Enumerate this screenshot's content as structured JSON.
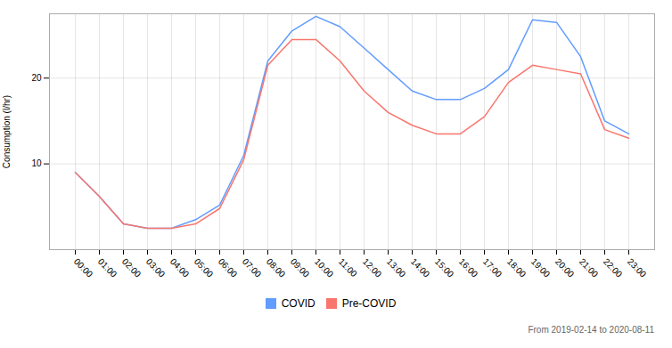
{
  "chart_data": {
    "type": "line",
    "categories": [
      "00:00",
      "01:00",
      "02:00",
      "03:00",
      "04:00",
      "05:00",
      "06:00",
      "07:00",
      "08:00",
      "09:00",
      "10:00",
      "11:00",
      "12:00",
      "13:00",
      "14:00",
      "15:00",
      "16:00",
      "17:00",
      "18:00",
      "19:00",
      "20:00",
      "21:00",
      "22:00",
      "23:00"
    ],
    "series": [
      {
        "name": "COVID",
        "color": "#619CFF",
        "values": [
          9.0,
          6.2,
          3.0,
          2.5,
          2.5,
          3.5,
          5.2,
          11.0,
          22.0,
          25.5,
          27.2,
          26.0,
          23.5,
          21.0,
          18.5,
          17.5,
          17.5,
          18.8,
          21.0,
          26.8,
          26.5,
          22.5,
          15.0,
          13.5
        ]
      },
      {
        "name": "Pre-COVID",
        "color": "#F8766D",
        "values": [
          9.0,
          6.2,
          3.0,
          2.5,
          2.5,
          3.0,
          4.8,
          10.5,
          21.5,
          24.5,
          24.5,
          22.0,
          18.5,
          16.0,
          14.5,
          13.5,
          13.5,
          15.5,
          19.5,
          21.5,
          21.0,
          20.5,
          14.0,
          13.0
        ]
      }
    ],
    "ylabel": "Consumption (l/hr)",
    "annotations": [
      "From 2019-02-14 to 2020-08-11"
    ],
    "ylim": [
      0,
      27.5
    ],
    "yticks": [
      10,
      20
    ],
    "grid": true,
    "legend": "bottom"
  }
}
